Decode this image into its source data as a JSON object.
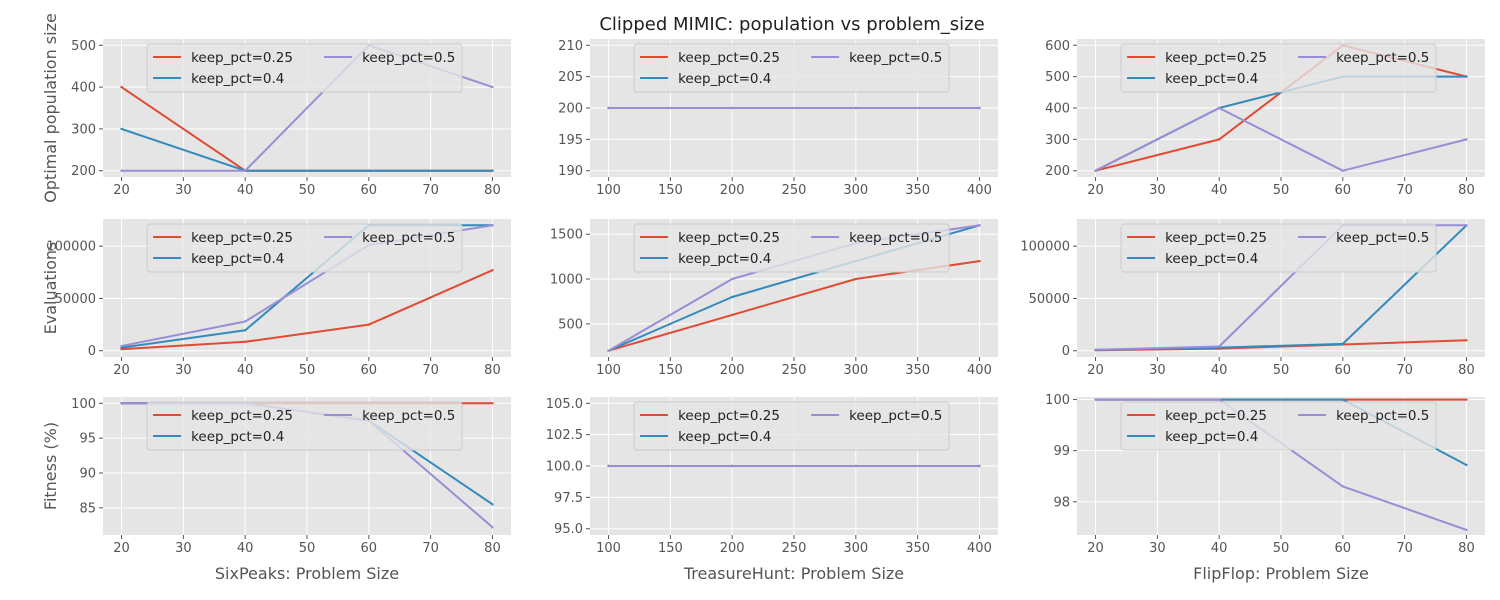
{
  "figure": {
    "title": "Clipped MIMIC: population vs problem_size"
  },
  "style": {
    "panel_bg": "#e5e5e5",
    "grid": "#ffffff",
    "series_colors": [
      "#e24a33",
      "#348abd",
      "#988ed5"
    ]
  },
  "chart_data": [
    {
      "type": "line",
      "row": 0,
      "col": 0,
      "ylabel": "Optimal population size",
      "xlabel": "",
      "x": [
        20,
        40,
        60,
        80
      ],
      "xlim": [
        17,
        83
      ],
      "xticks": [
        20,
        30,
        40,
        50,
        60,
        70,
        80
      ],
      "ylim": [
        185,
        515
      ],
      "yticks": [
        200,
        300,
        400,
        500
      ],
      "ytick_labels": [
        "200",
        "300",
        "400",
        "500"
      ],
      "legend": "top",
      "series": [
        {
          "name": "keep_pct=0.25",
          "values": [
            400,
            200,
            200,
            200
          ]
        },
        {
          "name": "keep_pct=0.4",
          "values": [
            300,
            200,
            200,
            200
          ]
        },
        {
          "name": "keep_pct=0.5",
          "values": [
            200,
            200,
            500,
            400
          ]
        }
      ]
    },
    {
      "type": "line",
      "row": 0,
      "col": 1,
      "ylabel": "",
      "xlabel": "",
      "x": [
        100,
        200,
        300,
        400
      ],
      "xlim": [
        85,
        415
      ],
      "xticks": [
        100,
        150,
        200,
        250,
        300,
        350,
        400
      ],
      "ylim": [
        189,
        211
      ],
      "yticks": [
        190,
        195,
        200,
        205,
        210
      ],
      "ytick_labels": [
        "190",
        "195",
        "200",
        "205",
        "210"
      ],
      "legend": "top",
      "series": [
        {
          "name": "keep_pct=0.25",
          "values": [
            200,
            200,
            200,
            200
          ]
        },
        {
          "name": "keep_pct=0.4",
          "values": [
            200,
            200,
            200,
            200
          ]
        },
        {
          "name": "keep_pct=0.5",
          "values": [
            200,
            200,
            200,
            200
          ]
        }
      ]
    },
    {
      "type": "line",
      "row": 0,
      "col": 2,
      "ylabel": "",
      "xlabel": "",
      "x": [
        20,
        40,
        60,
        80
      ],
      "xlim": [
        17,
        83
      ],
      "xticks": [
        20,
        30,
        40,
        50,
        60,
        70,
        80
      ],
      "ylim": [
        180,
        620
      ],
      "yticks": [
        200,
        300,
        400,
        500,
        600
      ],
      "ytick_labels": [
        "200",
        "300",
        "400",
        "500",
        "600"
      ],
      "legend": "top",
      "series": [
        {
          "name": "keep_pct=0.25",
          "values": [
            200,
            300,
            600,
            500
          ]
        },
        {
          "name": "keep_pct=0.4",
          "values": [
            200,
            400,
            500,
            500
          ]
        },
        {
          "name": "keep_pct=0.5",
          "values": [
            200,
            400,
            200,
            300
          ]
        }
      ]
    },
    {
      "type": "line",
      "row": 1,
      "col": 0,
      "ylabel": "Evaluations",
      "xlabel": "",
      "x": [
        20,
        40,
        60,
        80
      ],
      "xlim": [
        17,
        83
      ],
      "xticks": [
        20,
        30,
        40,
        50,
        60,
        70,
        80
      ],
      "ylim": [
        -6000,
        126000
      ],
      "yticks": [
        0,
        50000,
        100000
      ],
      "ytick_labels": [
        "0",
        "50000",
        "100000"
      ],
      "legend": "top",
      "series": [
        {
          "name": "keep_pct=0.25",
          "values": [
            1500,
            8500,
            25000,
            77000
          ]
        },
        {
          "name": "keep_pct=0.4",
          "values": [
            3000,
            19500,
            120000,
            120000
          ]
        },
        {
          "name": "keep_pct=0.5",
          "values": [
            4500,
            28000,
            101000,
            120000
          ]
        }
      ]
    },
    {
      "type": "line",
      "row": 1,
      "col": 1,
      "ylabel": "",
      "xlabel": "",
      "x": [
        100,
        200,
        300,
        400
      ],
      "xlim": [
        85,
        415
      ],
      "xticks": [
        100,
        150,
        200,
        250,
        300,
        350,
        400
      ],
      "ylim": [
        130,
        1670
      ],
      "yticks": [
        500,
        1000,
        1500
      ],
      "ytick_labels": [
        "500",
        "1000",
        "1500"
      ],
      "legend": "top",
      "series": [
        {
          "name": "keep_pct=0.25",
          "values": [
            200,
            600,
            1000,
            1200
          ]
        },
        {
          "name": "keep_pct=0.4",
          "values": [
            200,
            800,
            1200,
            1600
          ]
        },
        {
          "name": "keep_pct=0.5",
          "values": [
            200,
            1000,
            1400,
            1600
          ]
        }
      ]
    },
    {
      "type": "line",
      "row": 1,
      "col": 2,
      "ylabel": "",
      "xlabel": "",
      "x": [
        20,
        40,
        60,
        80
      ],
      "xlim": [
        17,
        83
      ],
      "xticks": [
        20,
        30,
        40,
        50,
        60,
        70,
        80
      ],
      "ylim": [
        -6000,
        126000
      ],
      "yticks": [
        0,
        50000,
        100000
      ],
      "ytick_labels": [
        "0",
        "50000",
        "100000"
      ],
      "legend": "top",
      "series": [
        {
          "name": "keep_pct=0.25",
          "values": [
            500,
            2000,
            6000,
            10000
          ]
        },
        {
          "name": "keep_pct=0.4",
          "values": [
            800,
            3000,
            6500,
            120000
          ]
        },
        {
          "name": "keep_pct=0.5",
          "values": [
            1000,
            4000,
            120000,
            120000
          ]
        }
      ]
    },
    {
      "type": "line",
      "row": 2,
      "col": 0,
      "ylabel": "Fitness (%)",
      "xlabel": "SixPeaks: Problem Size",
      "x": [
        20,
        40,
        60,
        80
      ],
      "xlim": [
        17,
        83
      ],
      "xticks": [
        20,
        30,
        40,
        50,
        60,
        70,
        80
      ],
      "ylim": [
        81.1,
        100.9
      ],
      "yticks": [
        85,
        90,
        95,
        100
      ],
      "ytick_labels": [
        "85",
        "90",
        "95",
        "100"
      ],
      "legend": "top",
      "series": [
        {
          "name": "keep_pct=0.25",
          "values": [
            100,
            100,
            100,
            100
          ]
        },
        {
          "name": "keep_pct=0.4",
          "values": [
            100,
            100,
            97.5,
            85.5
          ]
        },
        {
          "name": "keep_pct=0.5",
          "values": [
            100,
            100,
            97.5,
            82.2
          ]
        }
      ]
    },
    {
      "type": "line",
      "row": 2,
      "col": 1,
      "ylabel": "",
      "xlabel": "TreasureHunt: Problem Size",
      "x": [
        100,
        200,
        300,
        400
      ],
      "xlim": [
        85,
        415
      ],
      "xticks": [
        100,
        150,
        200,
        250,
        300,
        350,
        400
      ],
      "ylim": [
        94.5,
        105.5
      ],
      "yticks": [
        95,
        97.5,
        100,
        102.5,
        105
      ],
      "ytick_labels": [
        "95.0",
        "97.5",
        "100.0",
        "102.5",
        "105.0"
      ],
      "legend": "top",
      "series": [
        {
          "name": "keep_pct=0.25",
          "values": [
            100,
            100,
            100,
            100
          ]
        },
        {
          "name": "keep_pct=0.4",
          "values": [
            100,
            100,
            100,
            100
          ]
        },
        {
          "name": "keep_pct=0.5",
          "values": [
            100,
            100,
            100,
            100
          ]
        }
      ]
    },
    {
      "type": "line",
      "row": 2,
      "col": 2,
      "ylabel": "",
      "xlabel": "FlipFlop: Problem Size",
      "x": [
        20,
        40,
        60,
        80
      ],
      "xlim": [
        17,
        83
      ],
      "xticks": [
        20,
        30,
        40,
        50,
        60,
        70,
        80
      ],
      "ylim": [
        97.35,
        100.05
      ],
      "yticks": [
        98,
        99,
        100
      ],
      "ytick_labels": [
        "98",
        "99",
        "100"
      ],
      "legend": "top",
      "series": [
        {
          "name": "keep_pct=0.25",
          "values": [
            100,
            100,
            100,
            100
          ]
        },
        {
          "name": "keep_pct=0.4",
          "values": [
            100,
            100,
            100,
            98.72
          ]
        },
        {
          "name": "keep_pct=0.5",
          "values": [
            100,
            100,
            98.3,
            97.45
          ]
        }
      ]
    }
  ]
}
